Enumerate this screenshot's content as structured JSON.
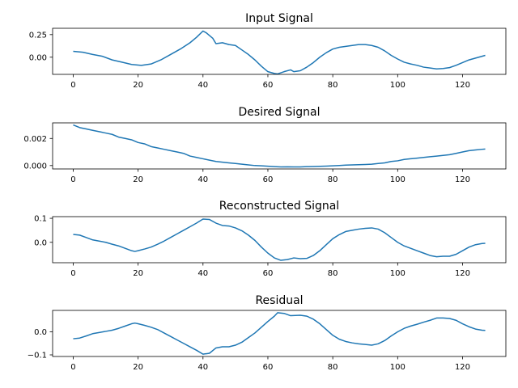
{
  "chart_data": [
    {
      "type": "line",
      "title": "Input Signal",
      "xlabel": "",
      "ylabel": "",
      "xlim": [
        -6.35,
        133.35
      ],
      "ylim": [
        -0.19,
        0.32
      ],
      "x_ticks": [
        0,
        20,
        40,
        60,
        80,
        100,
        120
      ],
      "y_ticks": [
        0.0,
        0.25
      ],
      "y_tick_labels": [
        "0.00",
        "0.25"
      ],
      "grid": false,
      "color": "#1f77b4",
      "points": [
        [
          0,
          0.065
        ],
        [
          3,
          0.055
        ],
        [
          6,
          0.03
        ],
        [
          9,
          0.01
        ],
        [
          12,
          -0.03
        ],
        [
          15,
          -0.055
        ],
        [
          18,
          -0.08
        ],
        [
          21,
          -0.09
        ],
        [
          24,
          -0.075
        ],
        [
          27,
          -0.03
        ],
        [
          30,
          0.03
        ],
        [
          33,
          0.09
        ],
        [
          36,
          0.16
        ],
        [
          38,
          0.22
        ],
        [
          40,
          0.29
        ],
        [
          41,
          0.27
        ],
        [
          42,
          0.24
        ],
        [
          43,
          0.21
        ],
        [
          44,
          0.15
        ],
        [
          46,
          0.16
        ],
        [
          48,
          0.14
        ],
        [
          50,
          0.13
        ],
        [
          52,
          0.08
        ],
        [
          54,
          0.03
        ],
        [
          56,
          -0.03
        ],
        [
          58,
          -0.1
        ],
        [
          60,
          -0.16
        ],
        [
          62,
          -0.18
        ],
        [
          63,
          -0.185
        ],
        [
          65,
          -0.16
        ],
        [
          67,
          -0.14
        ],
        [
          68,
          -0.16
        ],
        [
          70,
          -0.15
        ],
        [
          72,
          -0.11
        ],
        [
          74,
          -0.06
        ],
        [
          76,
          0.0
        ],
        [
          78,
          0.05
        ],
        [
          80,
          0.09
        ],
        [
          82,
          0.11
        ],
        [
          84,
          0.12
        ],
        [
          86,
          0.13
        ],
        [
          88,
          0.14
        ],
        [
          90,
          0.14
        ],
        [
          92,
          0.13
        ],
        [
          94,
          0.11
        ],
        [
          96,
          0.07
        ],
        [
          98,
          0.02
        ],
        [
          100,
          -0.02
        ],
        [
          102,
          -0.055
        ],
        [
          104,
          -0.075
        ],
        [
          106,
          -0.09
        ],
        [
          108,
          -0.11
        ],
        [
          110,
          -0.12
        ],
        [
          112,
          -0.13
        ],
        [
          114,
          -0.125
        ],
        [
          116,
          -0.115
        ],
        [
          118,
          -0.09
        ],
        [
          120,
          -0.06
        ],
        [
          122,
          -0.03
        ],
        [
          124,
          -0.01
        ],
        [
          126,
          0.01
        ],
        [
          127,
          0.02
        ]
      ]
    },
    {
      "type": "line",
      "title": "Desired Signal",
      "xlabel": "",
      "ylabel": "",
      "xlim": [
        -6.35,
        133.35
      ],
      "ylim": [
        -0.00025,
        0.00315
      ],
      "x_ticks": [
        0,
        20,
        40,
        60,
        80,
        100,
        120
      ],
      "y_ticks": [
        0.0,
        0.002
      ],
      "y_tick_labels": [
        "0.000",
        "0.002"
      ],
      "grid": false,
      "color": "#1f77b4",
      "points": [
        [
          0,
          0.003
        ],
        [
          2,
          0.0028
        ],
        [
          4,
          0.0027
        ],
        [
          6,
          0.0026
        ],
        [
          8,
          0.0025
        ],
        [
          10,
          0.0024
        ],
        [
          12,
          0.0023
        ],
        [
          14,
          0.0021
        ],
        [
          16,
          0.002
        ],
        [
          18,
          0.0019
        ],
        [
          20,
          0.0017
        ],
        [
          22,
          0.0016
        ],
        [
          24,
          0.0014
        ],
        [
          26,
          0.0013
        ],
        [
          28,
          0.0012
        ],
        [
          30,
          0.0011
        ],
        [
          32,
          0.001
        ],
        [
          34,
          0.0009
        ],
        [
          36,
          0.0007
        ],
        [
          38,
          0.0006
        ],
        [
          40,
          0.0005
        ],
        [
          42,
          0.0004
        ],
        [
          44,
          0.0003
        ],
        [
          46,
          0.00025
        ],
        [
          48,
          0.0002
        ],
        [
          50,
          0.00015
        ],
        [
          52,
          0.0001
        ],
        [
          54,
          5e-05
        ],
        [
          56,
          0.0
        ],
        [
          58,
          -2e-05
        ],
        [
          60,
          -5e-05
        ],
        [
          62,
          -8e-05
        ],
        [
          64,
          -0.0001
        ],
        [
          66,
          -9e-05
        ],
        [
          68,
          -0.0001
        ],
        [
          70,
          -0.0001
        ],
        [
          72,
          -8e-05
        ],
        [
          74,
          -7e-05
        ],
        [
          76,
          -6e-05
        ],
        [
          78,
          -4e-05
        ],
        [
          80,
          -2e-05
        ],
        [
          82,
          0.0
        ],
        [
          84,
          3e-05
        ],
        [
          86,
          5e-05
        ],
        [
          88,
          6e-05
        ],
        [
          90,
          8e-05
        ],
        [
          92,
          0.0001
        ],
        [
          94,
          0.00015
        ],
        [
          96,
          0.0002
        ],
        [
          98,
          0.0003
        ],
        [
          100,
          0.00035
        ],
        [
          102,
          0.00045
        ],
        [
          104,
          0.0005
        ],
        [
          106,
          0.00055
        ],
        [
          108,
          0.0006
        ],
        [
          110,
          0.00065
        ],
        [
          112,
          0.0007
        ],
        [
          114,
          0.00075
        ],
        [
          116,
          0.0008
        ],
        [
          118,
          0.0009
        ],
        [
          120,
          0.001
        ],
        [
          122,
          0.0011
        ],
        [
          124,
          0.00115
        ],
        [
          126,
          0.0012
        ],
        [
          127,
          0.00122
        ]
      ]
    },
    {
      "type": "line",
      "title": "Reconstructed Signal",
      "xlabel": "",
      "ylabel": "",
      "xlim": [
        -6.35,
        133.35
      ],
      "ylim": [
        -0.085,
        0.107
      ],
      "x_ticks": [
        0,
        20,
        40,
        60,
        80,
        100,
        120
      ],
      "y_ticks": [
        0.0,
        0.1
      ],
      "y_tick_labels": [
        "0.0",
        "0.1"
      ],
      "grid": false,
      "color": "#1f77b4",
      "points": [
        [
          0,
          0.033
        ],
        [
          2,
          0.03
        ],
        [
          4,
          0.02
        ],
        [
          6,
          0.01
        ],
        [
          8,
          0.005
        ],
        [
          10,
          0.0
        ],
        [
          12,
          -0.008
        ],
        [
          14,
          -0.015
        ],
        [
          16,
          -0.025
        ],
        [
          18,
          -0.035
        ],
        [
          19,
          -0.038
        ],
        [
          20,
          -0.035
        ],
        [
          22,
          -0.028
        ],
        [
          24,
          -0.02
        ],
        [
          26,
          -0.008
        ],
        [
          28,
          0.005
        ],
        [
          30,
          0.02
        ],
        [
          32,
          0.035
        ],
        [
          34,
          0.05
        ],
        [
          36,
          0.065
        ],
        [
          38,
          0.08
        ],
        [
          40,
          0.097
        ],
        [
          42,
          0.095
        ],
        [
          44,
          0.08
        ],
        [
          46,
          0.07
        ],
        [
          48,
          0.068
        ],
        [
          50,
          0.06
        ],
        [
          52,
          0.048
        ],
        [
          54,
          0.03
        ],
        [
          56,
          0.008
        ],
        [
          58,
          -0.02
        ],
        [
          60,
          -0.045
        ],
        [
          62,
          -0.065
        ],
        [
          64,
          -0.075
        ],
        [
          66,
          -0.072
        ],
        [
          68,
          -0.065
        ],
        [
          70,
          -0.068
        ],
        [
          72,
          -0.067
        ],
        [
          74,
          -0.055
        ],
        [
          76,
          -0.035
        ],
        [
          78,
          -0.01
        ],
        [
          80,
          0.015
        ],
        [
          82,
          0.032
        ],
        [
          84,
          0.045
        ],
        [
          86,
          0.05
        ],
        [
          88,
          0.055
        ],
        [
          90,
          0.058
        ],
        [
          92,
          0.06
        ],
        [
          94,
          0.055
        ],
        [
          96,
          0.04
        ],
        [
          98,
          0.02
        ],
        [
          100,
          0.0
        ],
        [
          102,
          -0.015
        ],
        [
          104,
          -0.025
        ],
        [
          106,
          -0.035
        ],
        [
          108,
          -0.045
        ],
        [
          110,
          -0.055
        ],
        [
          112,
          -0.06
        ],
        [
          114,
          -0.058
        ],
        [
          116,
          -0.058
        ],
        [
          118,
          -0.05
        ],
        [
          120,
          -0.035
        ],
        [
          122,
          -0.02
        ],
        [
          124,
          -0.01
        ],
        [
          126,
          -0.005
        ],
        [
          127,
          -0.004
        ]
      ]
    },
    {
      "type": "line",
      "title": "Residual",
      "xlabel": "",
      "ylabel": "",
      "xlim": [
        -6.35,
        133.35
      ],
      "ylim": [
        -0.107,
        0.093
      ],
      "x_ticks": [
        0,
        20,
        40,
        60,
        80,
        100,
        120
      ],
      "y_ticks": [
        -0.1,
        0.0
      ],
      "y_tick_labels": [
        "−0.1",
        "0.0"
      ],
      "grid": false,
      "color": "#1f77b4",
      "points": [
        [
          0,
          -0.03
        ],
        [
          2,
          -0.027
        ],
        [
          4,
          -0.018
        ],
        [
          6,
          -0.008
        ],
        [
          8,
          -0.003
        ],
        [
          10,
          0.002
        ],
        [
          12,
          0.007
        ],
        [
          14,
          0.015
        ],
        [
          16,
          0.025
        ],
        [
          18,
          0.035
        ],
        [
          19,
          0.038
        ],
        [
          20,
          0.035
        ],
        [
          22,
          0.028
        ],
        [
          24,
          0.02
        ],
        [
          26,
          0.01
        ],
        [
          28,
          -0.005
        ],
        [
          30,
          -0.02
        ],
        [
          32,
          -0.035
        ],
        [
          34,
          -0.05
        ],
        [
          36,
          -0.065
        ],
        [
          38,
          -0.08
        ],
        [
          40,
          -0.097
        ],
        [
          42,
          -0.093
        ],
        [
          44,
          -0.07
        ],
        [
          46,
          -0.065
        ],
        [
          48,
          -0.065
        ],
        [
          50,
          -0.058
        ],
        [
          52,
          -0.045
        ],
        [
          54,
          -0.025
        ],
        [
          56,
          -0.005
        ],
        [
          58,
          0.02
        ],
        [
          60,
          0.045
        ],
        [
          62,
          0.068
        ],
        [
          63,
          0.083
        ],
        [
          65,
          0.08
        ],
        [
          67,
          0.07
        ],
        [
          70,
          0.072
        ],
        [
          72,
          0.068
        ],
        [
          74,
          0.055
        ],
        [
          76,
          0.035
        ],
        [
          78,
          0.01
        ],
        [
          80,
          -0.015
        ],
        [
          82,
          -0.032
        ],
        [
          84,
          -0.042
        ],
        [
          86,
          -0.048
        ],
        [
          88,
          -0.052
        ],
        [
          90,
          -0.055
        ],
        [
          92,
          -0.058
        ],
        [
          94,
          -0.052
        ],
        [
          96,
          -0.038
        ],
        [
          98,
          -0.018
        ],
        [
          100,
          0.0
        ],
        [
          102,
          0.015
        ],
        [
          104,
          0.025
        ],
        [
          106,
          0.033
        ],
        [
          108,
          0.042
        ],
        [
          110,
          0.05
        ],
        [
          112,
          0.06
        ],
        [
          114,
          0.06
        ],
        [
          116,
          0.058
        ],
        [
          118,
          0.05
        ],
        [
          120,
          0.035
        ],
        [
          122,
          0.022
        ],
        [
          124,
          0.012
        ],
        [
          126,
          0.007
        ],
        [
          127,
          0.006
        ]
      ]
    }
  ]
}
